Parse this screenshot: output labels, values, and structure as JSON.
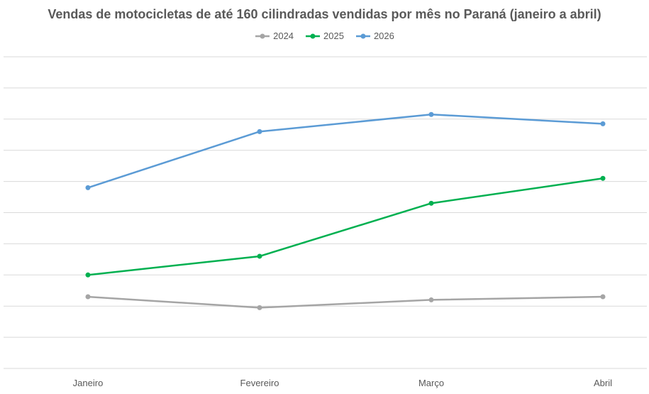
{
  "chart_data": {
    "type": "line",
    "title": "Vendas de motocicletas de até 160 cilindradas vendidas por mês no Paraná (janeiro a abril)",
    "categories": [
      "Janeiro",
      "Fevereiro",
      "Março",
      "Abril"
    ],
    "series": [
      {
        "name": "2024",
        "color": "#a5a5a5",
        "values": [
          2.3,
          1.95,
          2.2,
          2.3
        ]
      },
      {
        "name": "2025",
        "color": "#00b050",
        "values": [
          3.0,
          3.6,
          5.3,
          6.1
        ]
      },
      {
        "name": "2026",
        "color": "#5b9bd5",
        "values": [
          5.8,
          7.6,
          8.15,
          7.85
        ]
      }
    ],
    "ylim": [
      0,
      10
    ],
    "grid": true,
    "legend_position": "top"
  }
}
